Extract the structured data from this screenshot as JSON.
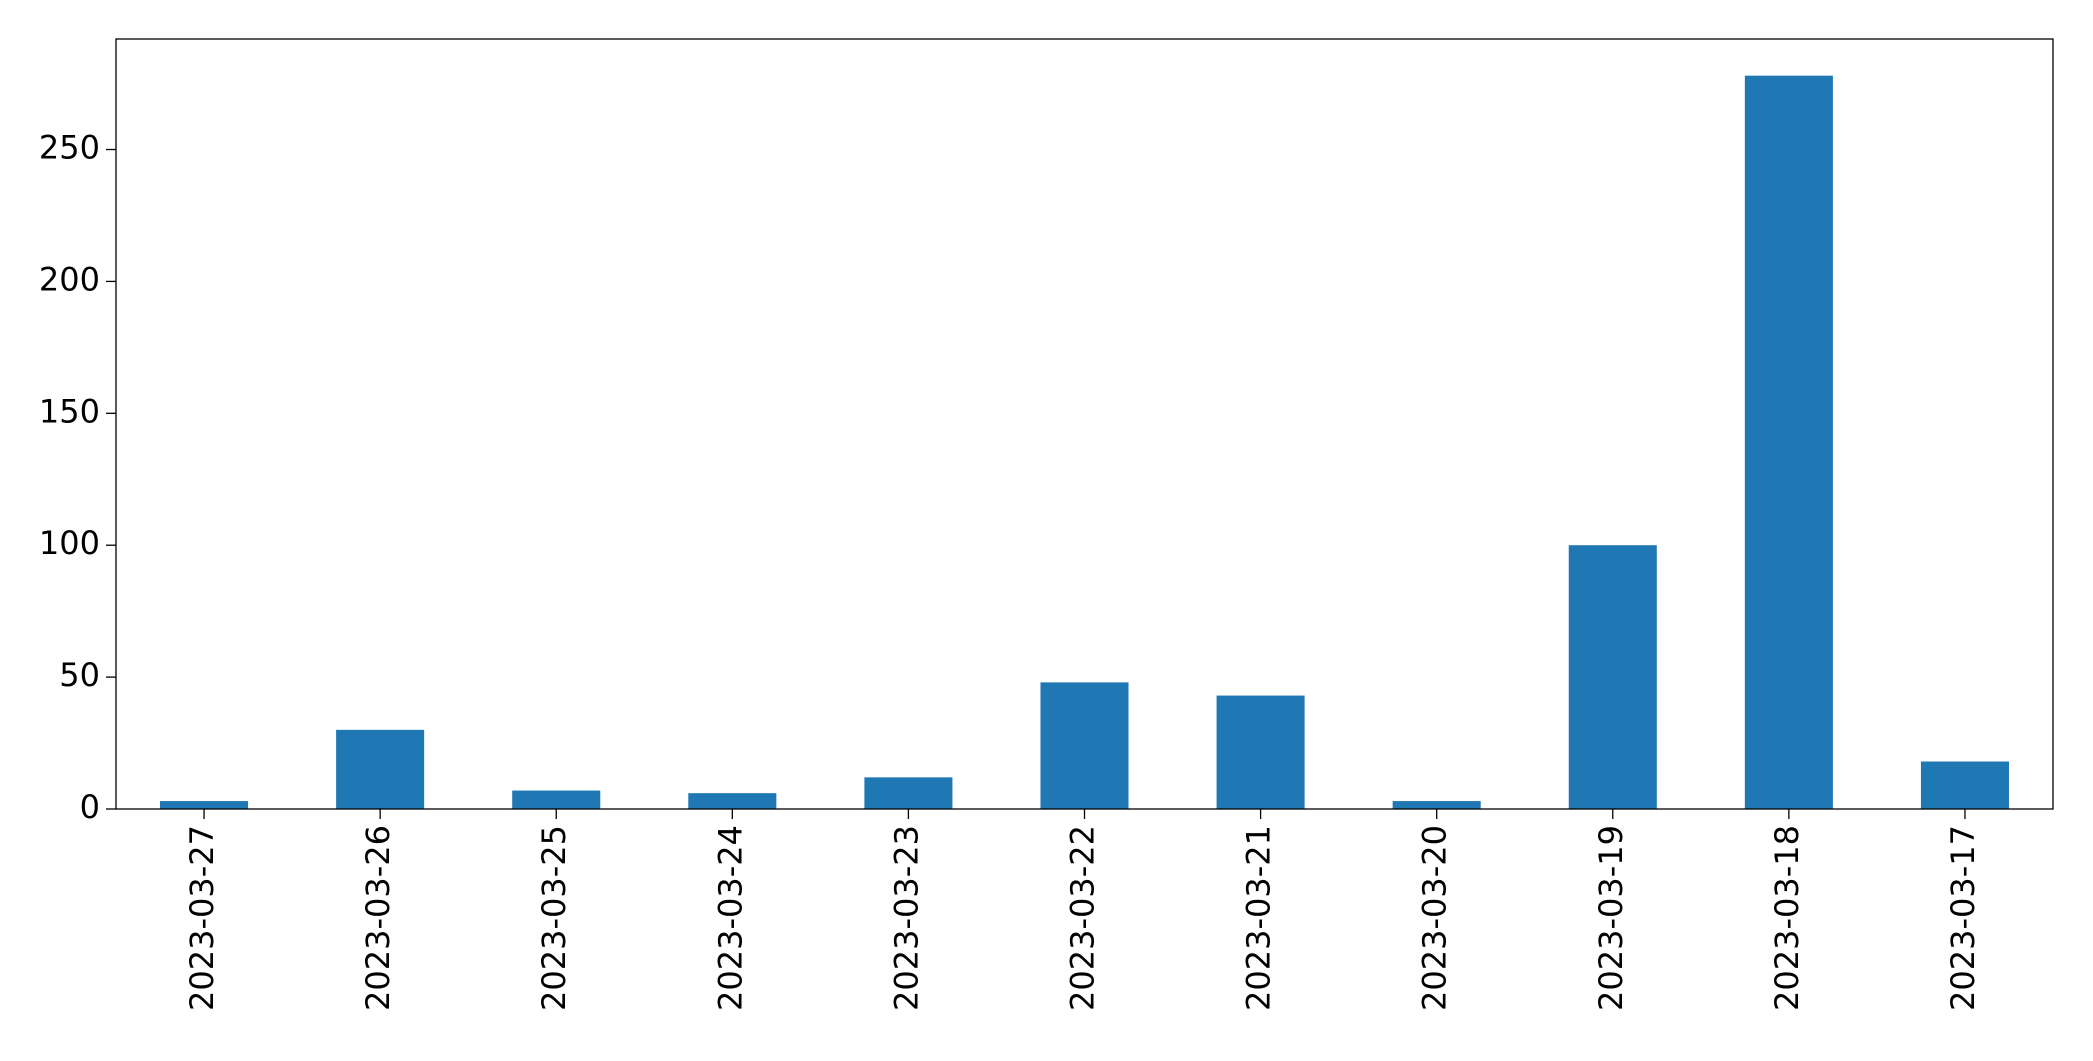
{
  "chart_data": {
    "type": "bar",
    "categories": [
      "2023-03-27",
      "2023-03-26",
      "2023-03-25",
      "2023-03-24",
      "2023-03-23",
      "2023-03-22",
      "2023-03-21",
      "2023-03-20",
      "2023-03-19",
      "2023-03-18",
      "2023-03-17"
    ],
    "values": [
      3,
      30,
      7,
      6,
      12,
      48,
      43,
      3,
      100,
      278,
      18
    ],
    "color": "#1f77b4",
    "ylim": [
      0,
      291.9
    ],
    "yticks": [
      0,
      50,
      100,
      150,
      200,
      250
    ],
    "grid": false
  }
}
